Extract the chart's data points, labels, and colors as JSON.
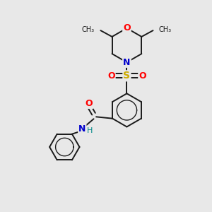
{
  "background_color": "#e8e8e8",
  "bond_color": "#1a1a1a",
  "figsize": [
    3.0,
    3.0
  ],
  "dpi": 100,
  "atom_colors": {
    "O": "#ff0000",
    "N": "#0000cc",
    "S": "#ccaa00",
    "H": "#008888",
    "C": "#1a1a1a"
  },
  "font_size": 9,
  "bond_width": 1.4,
  "xlim": [
    0,
    10
  ],
  "ylim": [
    0,
    10
  ]
}
